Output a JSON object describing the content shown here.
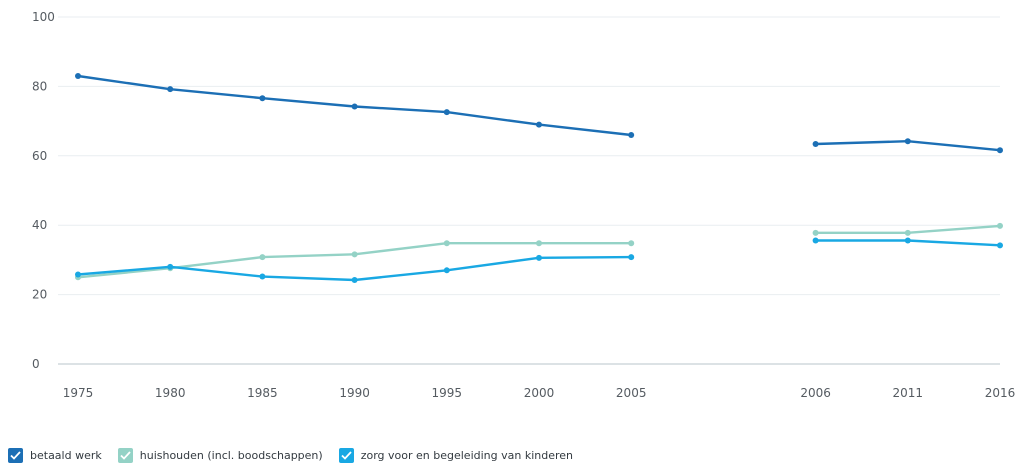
{
  "chart_data": {
    "type": "line",
    "categories": [
      "1975",
      "1980",
      "1985",
      "1990",
      "1995",
      "2000",
      "2005",
      "2006",
      "2011",
      "2016"
    ],
    "ylim": [
      0,
      100
    ],
    "yticks": [
      0,
      20,
      40,
      60,
      80,
      100
    ],
    "grid": true,
    "legend_position": "bottom-left",
    "break_after": "2005",
    "series": [
      {
        "name": "betaald werk",
        "color": "#1c6fb5",
        "values": [
          83,
          79.2,
          76.6,
          74.2,
          72.6,
          69.0,
          66.0,
          63.4,
          64.2,
          61.6
        ]
      },
      {
        "name": "huishouden (incl. boodschappen)",
        "color": "#94d2c6",
        "values": [
          25.0,
          27.6,
          30.8,
          31.6,
          34.8,
          34.8,
          34.8,
          37.8,
          37.8,
          39.8
        ]
      },
      {
        "name": "zorg voor en begeleiding van kinderen",
        "color": "#19a8e3",
        "values": [
          25.8,
          28.0,
          25.2,
          24.2,
          27.0,
          30.6,
          30.8,
          35.6,
          35.6,
          34.2
        ]
      }
    ]
  }
}
